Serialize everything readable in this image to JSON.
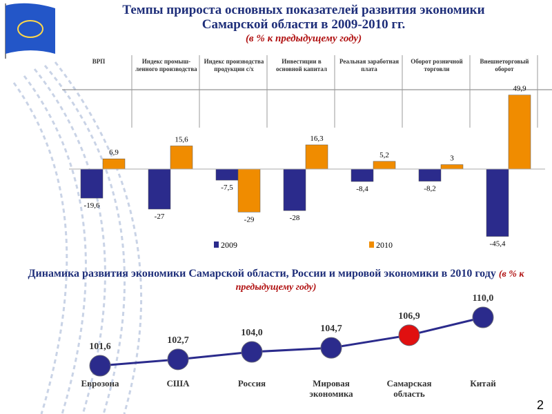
{
  "header": {
    "title": "Темпы прироста основных показателей развития экономики Самарской области в 2009-2010 гг.",
    "subtitle": "(в % к предыдущему году)"
  },
  "chart_data": [
    {
      "type": "bar",
      "categories": [
        "ВРП",
        "Индекс промыш-ленного производства",
        "Индекс производства продукции с/х",
        "Инвестиции в основной капитал",
        "Реальная заработная плата",
        "Оборот розничной торговли",
        "Внешнеторговый оборот"
      ],
      "series": [
        {
          "name": "2009",
          "color": "#2b2b8c",
          "values": [
            -19.6,
            -27,
            -7.5,
            -28,
            -8.4,
            -8.2,
            -45.4
          ],
          "value_labels": [
            "-19,6",
            "-27",
            "-7,5",
            "-28",
            "-8,4",
            "-8,2",
            "-45,4"
          ]
        },
        {
          "name": "2010",
          "color": "#f08c00",
          "values": [
            6.9,
            15.6,
            -29,
            16.3,
            5.2,
            3,
            49.9
          ],
          "value_labels": [
            "6,9",
            "15,6",
            "-29",
            "16,3",
            "5,2",
            "3",
            "49,9"
          ]
        }
      ]
    },
    {
      "type": "line",
      "title": "Динамика развития экономики Самарской области, России и мировой экономики в 2010 году",
      "subtitle": "(в % к предыдущему году)",
      "categories": [
        "Еврозона",
        "США",
        "Россия",
        "Мировая экономика",
        "Самарская область",
        "Китай"
      ],
      "values": [
        101.6,
        102.7,
        104.0,
        104.7,
        106.9,
        110.0
      ],
      "value_labels": [
        "101,6",
        "102,7",
        "104,0",
        "104,7",
        "106,9",
        "110,0"
      ],
      "color": "#2b2b8c",
      "point_colors": [
        "#2b2b8c",
        "#2b2b8c",
        "#2b2b8c",
        "#2b2b8c",
        "#e01010",
        "#2b2b8c"
      ]
    }
  ],
  "page_number": "2"
}
